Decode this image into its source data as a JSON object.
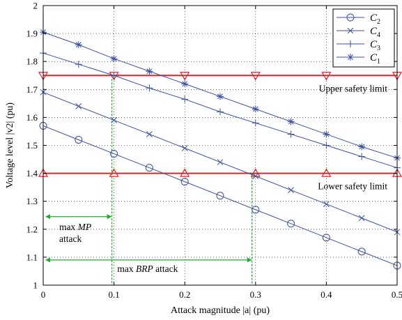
{
  "chart_data": {
    "type": "line",
    "xlabel": "Attack magnitude |a| (pu)",
    "ylabel": "Voltage level |v2| (pu)",
    "xlim": [
      0,
      0.5
    ],
    "ylim": [
      1,
      2
    ],
    "xticks": [
      "0",
      "0.1",
      "0.2",
      "0.3",
      "0.4",
      "0.5"
    ],
    "yticks": [
      "1",
      "1.1",
      "1.2",
      "1.3",
      "1.4",
      "1.5",
      "1.6",
      "1.7",
      "1.8",
      "1.9",
      "2"
    ],
    "grid": true,
    "legend_position": "top-right",
    "x": [
      0,
      0.05,
      0.1,
      0.15,
      0.2,
      0.25,
      0.3,
      0.35,
      0.4,
      0.45,
      0.5
    ],
    "series": [
      {
        "name": "C2",
        "base": "C",
        "sub": "2",
        "marker": "circle",
        "color": "#3a4fa0",
        "values": [
          1.57,
          1.52,
          1.47,
          1.42,
          1.37,
          1.32,
          1.27,
          1.22,
          1.17,
          1.12,
          1.07
        ]
      },
      {
        "name": "C4",
        "base": "C",
        "sub": "4",
        "marker": "x",
        "color": "#3a4fa0",
        "values": [
          1.69,
          1.64,
          1.59,
          1.54,
          1.49,
          1.44,
          1.39,
          1.34,
          1.29,
          1.24,
          1.19
        ]
      },
      {
        "name": "C3",
        "base": "C",
        "sub": "3",
        "marker": "plus",
        "color": "#3a4fa0",
        "values": [
          1.83,
          1.79,
          1.75,
          1.705,
          1.665,
          1.62,
          1.58,
          1.54,
          1.5,
          1.46,
          1.42
        ]
      },
      {
        "name": "C1",
        "base": "C",
        "sub": "1",
        "marker": "star",
        "color": "#3a4fa0",
        "values": [
          1.905,
          1.86,
          1.81,
          1.765,
          1.72,
          1.675,
          1.63,
          1.585,
          1.54,
          1.495,
          1.455
        ]
      }
    ],
    "limits": [
      {
        "label": "Upper safety limit",
        "value": 1.75,
        "marker": "triangle-down",
        "color": "#e8202a"
      },
      {
        "label": "Lower safety limit",
        "value": 1.4,
        "marker": "triangle-up",
        "color": "#e8202a"
      }
    ],
    "annotations": [
      {
        "label_prefix": "max ",
        "label_italic": "MP",
        "label_suffix": "",
        "label_line2": "attack",
        "x_value": 0.097,
        "y_value": 1.245,
        "drop_from": 1.75,
        "color": "#22aa33"
      },
      {
        "label_prefix": "max ",
        "label_italic": "BRP",
        "label_suffix": " attack",
        "label_line2": "",
        "x_value": 0.295,
        "y_value": 1.09,
        "drop_from": 1.4,
        "color": "#22aa33"
      }
    ]
  }
}
